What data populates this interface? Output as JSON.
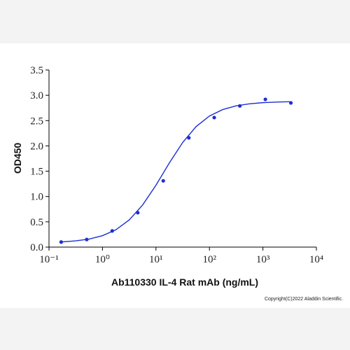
{
  "chart_data": {
    "type": "scatter",
    "x_label": "Ab110330 IL-4 Rat mAb (ng/mL)",
    "y_label": "OD450",
    "note": "Copyright(C)2022 Aladdin Scientific.",
    "xscale": "log",
    "xlim": [
      0.1,
      10000
    ],
    "xticks": [
      {
        "value": 0.1,
        "label": "10⁻¹"
      },
      {
        "value": 1,
        "label": "10⁰"
      },
      {
        "value": 10,
        "label": "10¹"
      },
      {
        "value": 100,
        "label": "10²"
      },
      {
        "value": 1000,
        "label": "10³"
      },
      {
        "value": 10000,
        "label": "10⁴"
      }
    ],
    "ylim": [
      0,
      3.5
    ],
    "yticks": [
      {
        "value": 0,
        "label": "0.0"
      },
      {
        "value": 0.5,
        "label": "0.5"
      },
      {
        "value": 1,
        "label": "1.0"
      },
      {
        "value": 1.5,
        "label": "1.5"
      },
      {
        "value": 2,
        "label": "2.0"
      },
      {
        "value": 2.5,
        "label": "2.5"
      },
      {
        "value": 3,
        "label": "3.0"
      },
      {
        "value": 3.5,
        "label": "3.5"
      }
    ],
    "series": [
      {
        "style": "markers",
        "color": "#1f2fd0",
        "x": [
          0.169,
          0.508,
          1.52,
          4.57,
          13.7,
          41.2,
          123,
          370,
          1111,
          3333
        ],
        "values": [
          0.1,
          0.15,
          0.32,
          0.68,
          1.31,
          2.16,
          2.56,
          2.79,
          2.92,
          2.85
        ]
      },
      {
        "style": "line",
        "color": "#1f2fd0",
        "x": [
          0.178,
          0.316,
          0.562,
          1,
          1.78,
          3.16,
          5.62,
          10,
          17.8,
          31.6,
          56.2,
          100,
          178,
          316,
          562,
          1000,
          1778,
          3162
        ],
        "values": [
          0.103,
          0.123,
          0.159,
          0.226,
          0.342,
          0.536,
          0.831,
          1.223,
          1.663,
          2.068,
          2.381,
          2.591,
          2.719,
          2.792,
          2.832,
          2.855,
          2.866,
          2.873
        ]
      }
    ]
  }
}
